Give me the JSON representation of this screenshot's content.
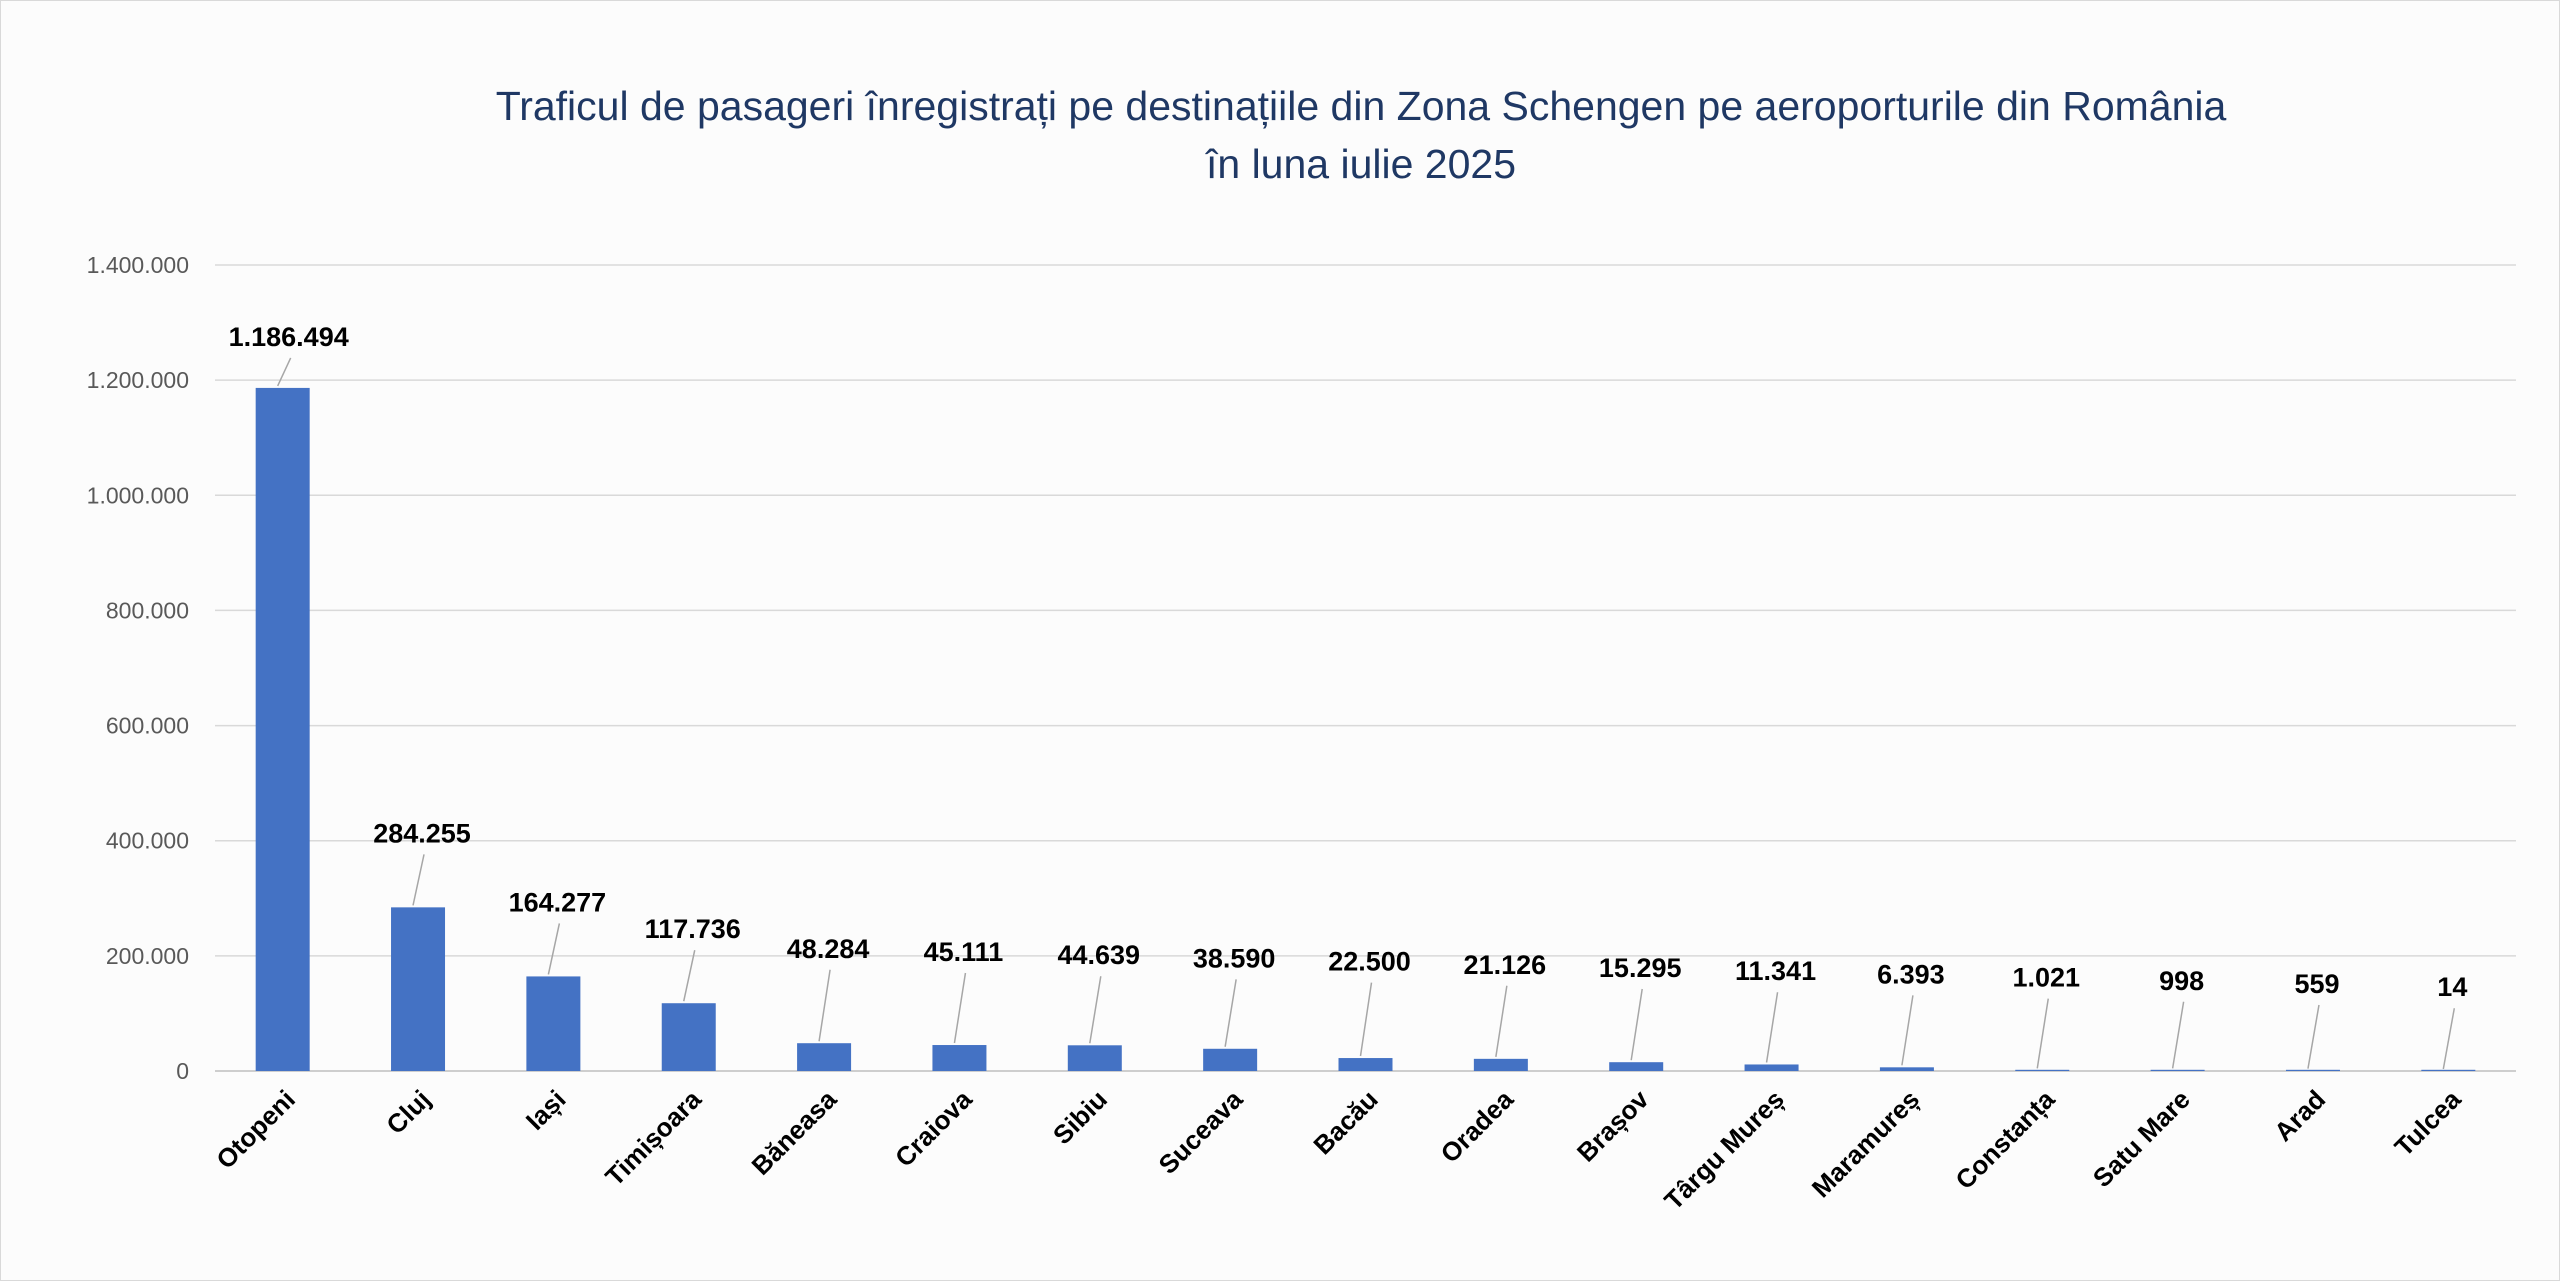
{
  "chart_data": {
    "type": "bar",
    "title_line1": "Traficul de pasageri înregistrați pe destinațiile din Zona Schengen pe aeroporturile din România",
    "title_line2": "în luna iulie 2025",
    "categories": [
      "Otopeni",
      "Cluj",
      "Iași",
      "Timișoara",
      "Băneasa",
      "Craiova",
      "Sibiu",
      "Suceava",
      "Bacău",
      "Oradea",
      "Brașov",
      "Târgu Mureș",
      "Maramureș",
      "Constanța",
      "Satu Mare",
      "Arad",
      "Tulcea"
    ],
    "values": [
      1186494,
      284255,
      164277,
      117736,
      48284,
      45111,
      44639,
      38590,
      22500,
      21126,
      15295,
      11341,
      6393,
      1021,
      998,
      559,
      14
    ],
    "data_labels": [
      "1.186.494",
      "284.255",
      "164.277",
      "117.736",
      "48.284",
      "45.111",
      "44.639",
      "38.590",
      "22.500",
      "21.126",
      "15.295",
      "11.341",
      "6.393",
      "1.021",
      "998",
      "559",
      "14"
    ],
    "y_ticks": [
      "0",
      "200.000",
      "400.000",
      "600.000",
      "800.000",
      "1.000.000",
      "1.200.000",
      "1.400.000"
    ],
    "ylim": [
      0,
      1400000
    ],
    "grid": true,
    "legend": "none",
    "bar_color": "#4472c4",
    "title_color": "#1f3864"
  }
}
